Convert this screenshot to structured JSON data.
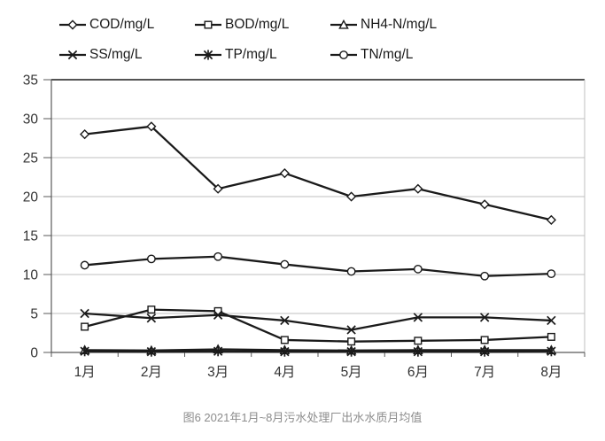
{
  "figure": {
    "caption": "图6 2021年1月~8月污水处理厂出水水质月均值"
  },
  "chart_data": {
    "type": "line",
    "title": "",
    "xlabel": "",
    "ylabel": "",
    "categories": [
      "1月",
      "2月",
      "3月",
      "4月",
      "5月",
      "6月",
      "7月",
      "8月"
    ],
    "series": [
      {
        "name": "COD/mg/L",
        "marker": "diamond",
        "values": [
          28,
          29,
          21,
          23,
          20,
          21,
          19,
          17
        ]
      },
      {
        "name": "BOD/mg/L",
        "marker": "square",
        "values": [
          3.3,
          5.5,
          5.3,
          1.6,
          1.4,
          1.5,
          1.6,
          2.0
        ]
      },
      {
        "name": "NH4-N/mg/L",
        "marker": "triangle",
        "values": [
          0.3,
          0.25,
          0.4,
          0.3,
          0.25,
          0.3,
          0.3,
          0.3
        ]
      },
      {
        "name": "SS/mg/L",
        "marker": "x",
        "values": [
          5.0,
          4.4,
          4.8,
          4.1,
          2.9,
          4.5,
          4.5,
          4.1
        ]
      },
      {
        "name": "TP/mg/L",
        "marker": "asterisk",
        "values": [
          0.15,
          0.1,
          0.15,
          0.1,
          0.1,
          0.1,
          0.1,
          0.15
        ]
      },
      {
        "name": "TN/mg/L",
        "marker": "circle",
        "values": [
          11.2,
          12.0,
          12.3,
          11.3,
          10.4,
          10.7,
          9.8,
          10.1
        ]
      }
    ],
    "ylim": [
      0,
      35
    ],
    "yticks": [
      0,
      5,
      10,
      15,
      20,
      25,
      30,
      35
    ],
    "grid": "horizontal",
    "legend_position": "top",
    "colors": {
      "line": "#1a1a1a",
      "grid": "#bfbfbf",
      "axis": "#595959",
      "tick_text": "#333333",
      "caption": "#8c8c8c"
    }
  }
}
